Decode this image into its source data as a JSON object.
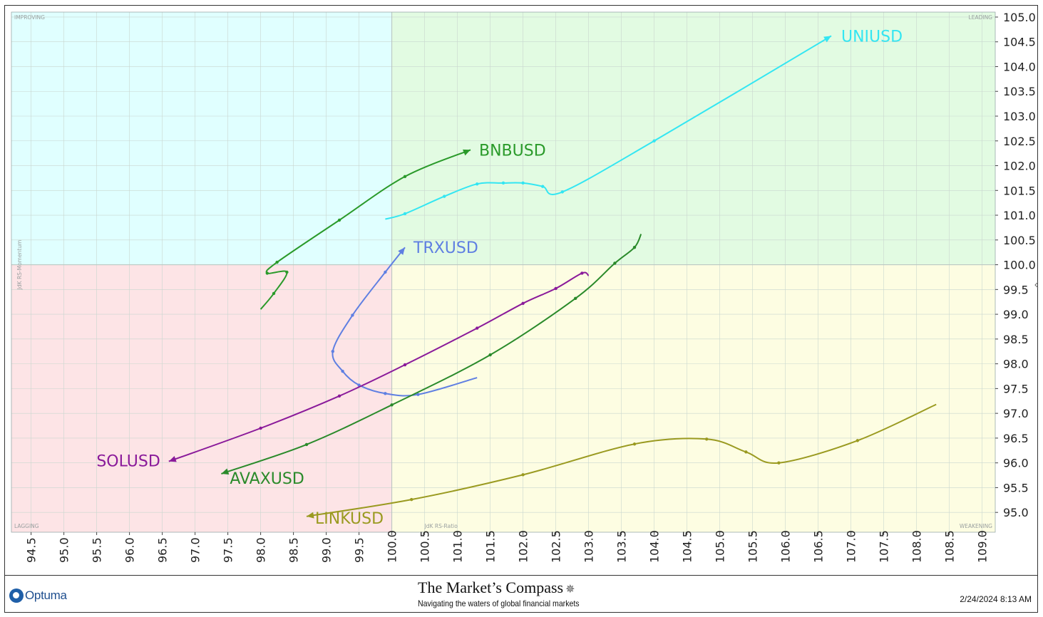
{
  "chart_data": {
    "type": "scatter",
    "subtype": "relative-rotation-graph",
    "xlabel": "JdK RS-Ratio",
    "ylabel": "JdK RS-Momentum",
    "xlim": [
      94.2,
      109.2
    ],
    "ylim": [
      94.6,
      105.1
    ],
    "center": [
      100,
      100
    ],
    "grid": true,
    "x_ticks": [
      "94.5",
      "95.0",
      "95.5",
      "96.0",
      "96.5",
      "97.0",
      "97.5",
      "98.0",
      "98.5",
      "99.0",
      "99.5",
      "100.0",
      "100.5",
      "101.0",
      "101.5",
      "102.0",
      "102.5",
      "103.0",
      "103.5",
      "104.0",
      "104.5",
      "105.0",
      "105.5",
      "106.0",
      "106.5",
      "107.0",
      "107.5",
      "108.0",
      "108.5",
      "109.0"
    ],
    "y_ticks": [
      "95.0",
      "95.5",
      "96.0",
      "96.5",
      "97.0",
      "97.5",
      "98.0",
      "98.5",
      "99.0",
      "99.5",
      "100.0",
      "100.5",
      "101.0",
      "101.5",
      "102.0",
      "102.5",
      "103.0",
      "103.5",
      "104.0",
      "104.5",
      "105.0"
    ],
    "quadrants": [
      {
        "name": "IMPROVING",
        "position": "top-left",
        "color": "#e0ffff"
      },
      {
        "name": "LEADING",
        "position": "top-right",
        "color": "#e2fbe2"
      },
      {
        "name": "LAGGING",
        "position": "bottom-left",
        "color": "#fde4e6"
      },
      {
        "name": "WEAKENING",
        "position": "bottom-right",
        "color": "#fdfde2"
      }
    ],
    "series": [
      {
        "name": "UNIUSD",
        "color": "#33e6f2",
        "points": [
          [
            99.9,
            100.92
          ],
          [
            100.2,
            101.03
          ],
          [
            100.8,
            101.38
          ],
          [
            101.3,
            101.63
          ],
          [
            101.7,
            101.65
          ],
          [
            102.0,
            101.65
          ],
          [
            102.3,
            101.58
          ],
          [
            102.6,
            101.47
          ],
          [
            104.0,
            102.5
          ],
          [
            106.7,
            104.62
          ]
        ]
      },
      {
        "name": "BNBUSD",
        "color": "#2a9a2a",
        "points": [
          [
            98.0,
            99.1
          ],
          [
            98.2,
            99.42
          ],
          [
            98.4,
            99.85
          ],
          [
            98.1,
            99.83
          ],
          [
            98.25,
            100.05
          ],
          [
            99.2,
            100.9
          ],
          [
            100.2,
            101.78
          ],
          [
            101.2,
            102.32
          ]
        ]
      },
      {
        "name": "TRXUSD",
        "color": "#5f7fe2",
        "points": [
          [
            101.3,
            97.72
          ],
          [
            100.4,
            97.38
          ],
          [
            99.9,
            97.4
          ],
          [
            99.5,
            97.57
          ],
          [
            99.25,
            97.85
          ],
          [
            99.1,
            98.25
          ],
          [
            99.4,
            98.98
          ],
          [
            99.9,
            99.85
          ],
          [
            100.2,
            100.35
          ]
        ]
      },
      {
        "name": "SOLUSD",
        "color": "#8a1a9a",
        "points": [
          [
            103.0,
            99.78
          ],
          [
            102.9,
            99.83
          ],
          [
            102.5,
            99.52
          ],
          [
            102.0,
            99.22
          ],
          [
            101.3,
            98.72
          ],
          [
            100.2,
            97.98
          ],
          [
            99.2,
            97.35
          ],
          [
            98.0,
            96.7
          ],
          [
            96.6,
            96.03
          ]
        ]
      },
      {
        "name": "AVAXUSD",
        "color": "#2a8a2a",
        "points": [
          [
            103.8,
            100.62
          ],
          [
            103.7,
            100.35
          ],
          [
            103.4,
            100.03
          ],
          [
            102.8,
            99.32
          ],
          [
            101.5,
            98.18
          ],
          [
            100.0,
            97.17
          ],
          [
            98.7,
            96.37
          ],
          [
            97.4,
            95.78
          ]
        ]
      },
      {
        "name": "LINKUSD",
        "color": "#9a9a20",
        "points": [
          [
            108.3,
            97.18
          ],
          [
            107.1,
            96.45
          ],
          [
            105.9,
            96.0
          ],
          [
            105.4,
            96.22
          ],
          [
            104.8,
            96.48
          ],
          [
            103.7,
            96.38
          ],
          [
            102.0,
            95.76
          ],
          [
            100.3,
            95.26
          ],
          [
            98.7,
            94.92
          ]
        ]
      }
    ]
  },
  "footer": {
    "logo_text": "Optuma",
    "title": "The Market’s Compass",
    "subtitle": "Navigating the waters of global financial markets",
    "timestamp": "2/24/2024 8:13 AM"
  }
}
